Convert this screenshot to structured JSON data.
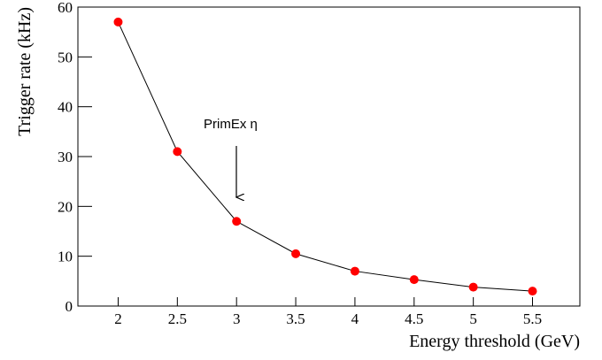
{
  "chart_data": {
    "type": "line",
    "x_label": "Energy threshold  (GeV)",
    "y_label": "Trigger rate  (kHz)",
    "annotation": "PrimEx η",
    "x": [
      2,
      2.5,
      3,
      3.5,
      4,
      4.5,
      5,
      5.5
    ],
    "series": [
      {
        "color": "#ff0000",
        "values": [
          57,
          31,
          17,
          10.5,
          7,
          5.3,
          3.8,
          3
        ]
      }
    ],
    "xlim": [
      1.66,
      5.9
    ],
    "ylim": [
      0,
      60
    ],
    "xticks": [
      2,
      2.5,
      3,
      3.5,
      4,
      4.5,
      5,
      5.5
    ],
    "yticks": [
      0,
      10,
      20,
      30,
      40,
      50,
      60
    ]
  }
}
